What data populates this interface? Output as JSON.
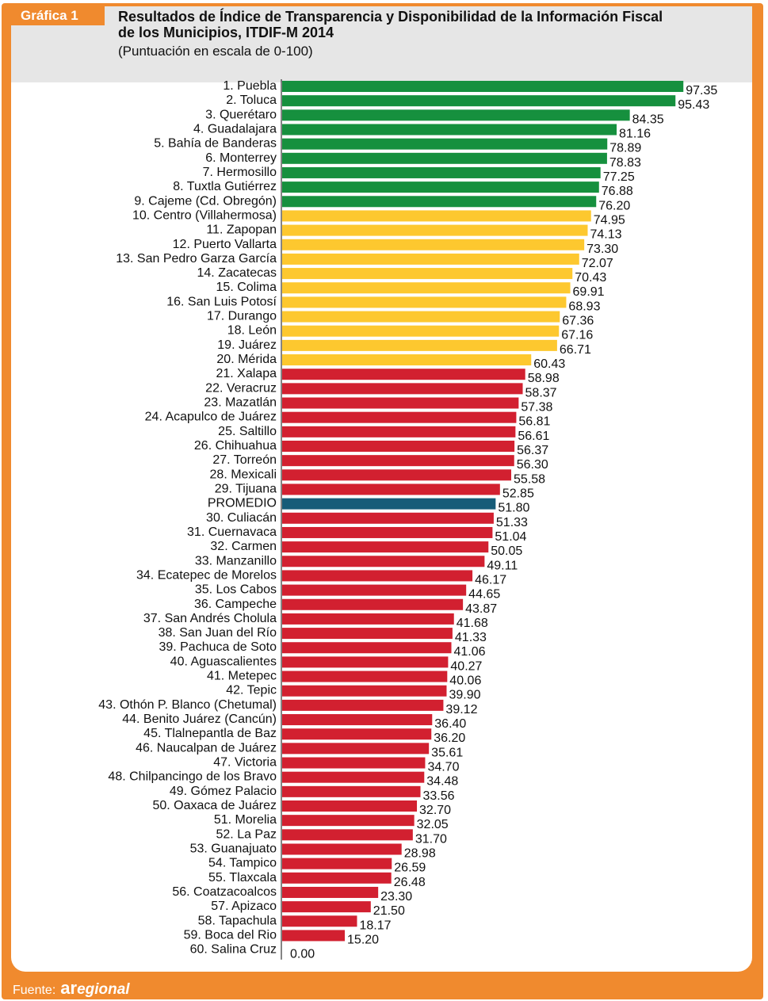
{
  "badge": "Gráfica 1",
  "title_line1": "Resultados de Índice de Transparencia y Disponibilidad de la Información Fiscal",
  "title_line2": "de los Municipios, ITDIF-M 2014",
  "subtitle": "(Puntuación en escala de 0-100)",
  "footer_label": "Fuente:",
  "footer_brand_a": "ar",
  "footer_brand_rest": "egional",
  "colors": {
    "green": "#16903e",
    "yellow": "#fdc82f",
    "red": "#d22030",
    "blue": "#165c78",
    "orange": "#f08a2e"
  },
  "chart_data": {
    "type": "bar",
    "orientation": "horizontal",
    "xlim": [
      0,
      100
    ],
    "categories": [
      "1. Puebla",
      "2. Toluca",
      "3. Querétaro",
      "4. Guadalajara",
      "5. Bahía de Banderas",
      "6. Monterrey",
      "7. Hermosillo",
      "8. Tuxtla Gutiérrez",
      "9. Cajeme (Cd. Obregón)",
      "10. Centro (Villahermosa)",
      "11. Zapopan",
      "12. Puerto Vallarta",
      "13. San Pedro Garza García",
      "14. Zacatecas",
      "15. Colima",
      "16. San Luis Potosí",
      "17. Durango",
      "18. León",
      "19. Juárez",
      "20. Mérida",
      "21. Xalapa",
      "22. Veracruz",
      "23. Mazatlán",
      "24. Acapulco de Juárez",
      "25. Saltillo",
      "26. Chihuahua",
      "27. Torreón",
      "28. Mexicali",
      "29. Tijuana",
      "PROMEDIO",
      "30. Culiacán",
      "31. Cuernavaca",
      "32. Carmen",
      "33. Manzanillo",
      "34. Ecatepec de Morelos",
      "35. Los Cabos",
      "36. Campeche",
      "37. San Andrés Cholula",
      "38. San Juan del Río",
      "39. Pachuca de Soto",
      "40. Aguascalientes",
      "41. Metepec",
      "42. Tepic",
      "43. Othón P. Blanco (Chetumal)",
      "44. Benito Juárez (Cancún)",
      "45. Tlalnepantla de Baz",
      "46. Naucalpan de Juárez",
      "47. Victoria",
      "48. Chilpancingo de los Bravo",
      "49. Gómez Palacio",
      "50. Oaxaca de Juárez",
      "51. Morelia",
      "52. La Paz",
      "53. Guanajuato",
      "54. Tampico",
      "55. Tlaxcala",
      "56. Coatzacoalcos",
      "57. Apizaco",
      "58. Tapachula",
      "59. Boca del Rio",
      "60. Salina Cruz"
    ],
    "values": [
      97.35,
      95.43,
      84.35,
      81.16,
      78.89,
      78.83,
      77.25,
      76.88,
      76.2,
      74.95,
      74.13,
      73.3,
      72.07,
      70.43,
      69.91,
      68.93,
      67.36,
      67.16,
      66.71,
      60.43,
      58.98,
      58.37,
      57.38,
      56.81,
      56.61,
      56.37,
      56.3,
      55.58,
      52.85,
      51.8,
      51.33,
      51.04,
      50.05,
      49.11,
      46.17,
      44.65,
      43.87,
      41.68,
      41.33,
      41.06,
      40.27,
      40.06,
      39.9,
      39.12,
      36.4,
      36.2,
      35.61,
      34.7,
      34.48,
      33.56,
      32.7,
      32.05,
      31.7,
      28.98,
      26.59,
      26.48,
      23.3,
      21.5,
      18.17,
      15.2,
      0.0
    ],
    "value_labels": [
      "97.35",
      "95.43",
      "84.35",
      "81.16",
      "78.89",
      "78.83",
      "77.25",
      "76.88",
      "76.20",
      "74.95",
      "74.13",
      "73.30",
      "72.07",
      "70.43",
      "69.91",
      "68.93",
      "67.36",
      "67.16",
      "66.71",
      "60.43",
      "58.98",
      "58.37",
      "57.38",
      "56.81",
      "56.61",
      "56.37",
      "56.30",
      "55.58",
      "52.85",
      "51.80",
      "51.33",
      "51.04",
      "50.05",
      "49.11",
      "46.17",
      "44.65",
      "43.87",
      "41.68",
      "41.33",
      "41.06",
      "40.27",
      "40.06",
      "39.90",
      "39.12",
      "36.40",
      "36.20",
      "35.61",
      "34.70",
      "34.48",
      "33.56",
      "32.70",
      "32.05",
      "31.70",
      "28.98",
      "26.59",
      "26.48",
      "23.30",
      "21.50",
      "18.17",
      "15.20",
      "0.00"
    ],
    "bar_colors": [
      "green",
      "green",
      "green",
      "green",
      "green",
      "green",
      "green",
      "green",
      "green",
      "yellow",
      "yellow",
      "yellow",
      "yellow",
      "yellow",
      "yellow",
      "yellow",
      "yellow",
      "yellow",
      "yellow",
      "yellow",
      "red",
      "red",
      "red",
      "red",
      "red",
      "red",
      "red",
      "red",
      "red",
      "blue",
      "red",
      "red",
      "red",
      "red",
      "red",
      "red",
      "red",
      "red",
      "red",
      "red",
      "red",
      "red",
      "red",
      "red",
      "red",
      "red",
      "red",
      "red",
      "red",
      "red",
      "red",
      "red",
      "red",
      "red",
      "red",
      "red",
      "red",
      "red",
      "red",
      "red",
      "red"
    ],
    "grid": false,
    "legend": "none"
  }
}
